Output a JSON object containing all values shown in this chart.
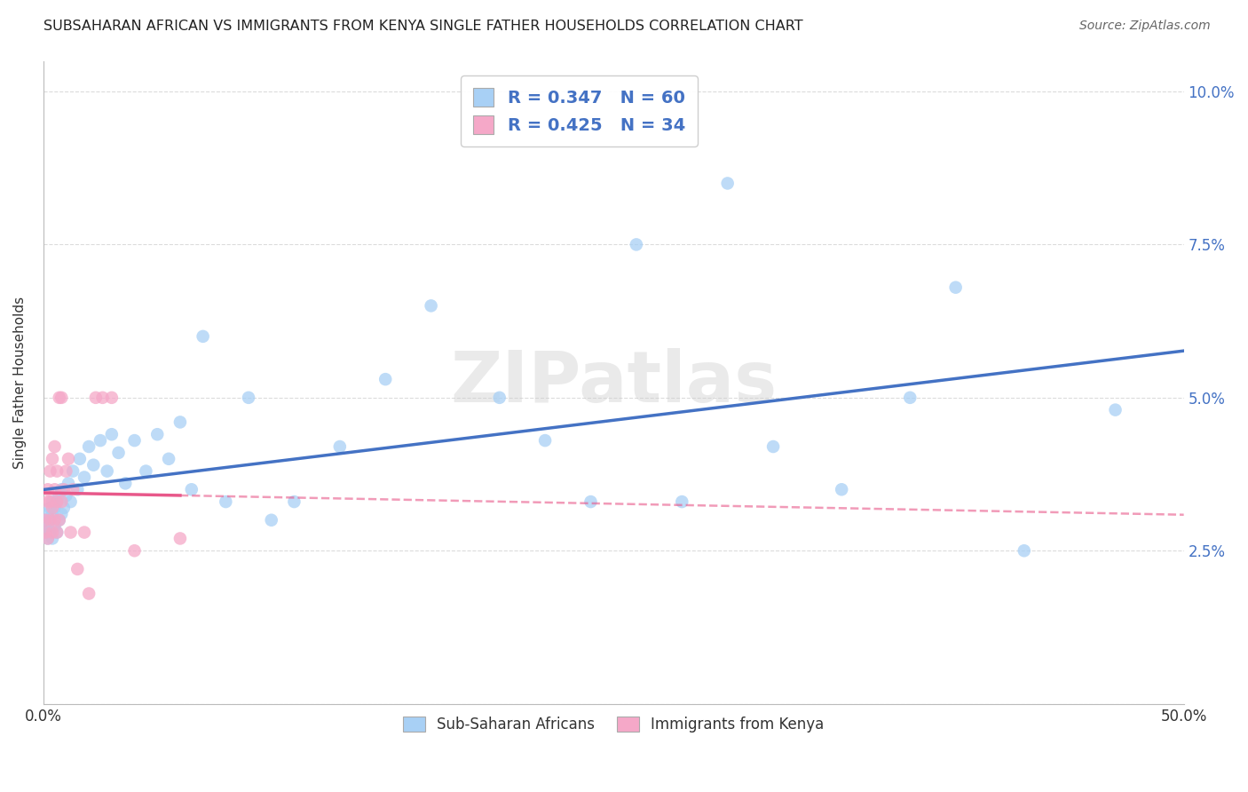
{
  "title": "SUBSAHARAN AFRICAN VS IMMIGRANTS FROM KENYA SINGLE FATHER HOUSEHOLDS CORRELATION CHART",
  "source": "Source: ZipAtlas.com",
  "ylabel": "Single Father Households",
  "xlim": [
    0.0,
    0.5
  ],
  "ylim": [
    0.0,
    0.105
  ],
  "blue_r": 0.347,
  "blue_n": 60,
  "pink_r": 0.425,
  "pink_n": 34,
  "blue_color": "#A8D0F5",
  "pink_color": "#F5A8C8",
  "blue_line_color": "#4472C4",
  "pink_line_color": "#E8588A",
  "legend_text_color": "#4472C4",
  "background_color": "#FFFFFF",
  "grid_color": "#CCCCCC",
  "watermark": "ZIPatlas",
  "blue_x": [
    0.001,
    0.001,
    0.002,
    0.002,
    0.002,
    0.003,
    0.003,
    0.003,
    0.004,
    0.004,
    0.004,
    0.005,
    0.005,
    0.006,
    0.006,
    0.007,
    0.007,
    0.008,
    0.008,
    0.009,
    0.01,
    0.011,
    0.012,
    0.013,
    0.015,
    0.016,
    0.018,
    0.02,
    0.022,
    0.025,
    0.028,
    0.03,
    0.033,
    0.036,
    0.04,
    0.045,
    0.05,
    0.055,
    0.06,
    0.065,
    0.07,
    0.08,
    0.09,
    0.1,
    0.11,
    0.13,
    0.15,
    0.17,
    0.2,
    0.22,
    0.24,
    0.26,
    0.28,
    0.3,
    0.32,
    0.35,
    0.38,
    0.4,
    0.43,
    0.47
  ],
  "blue_y": [
    0.028,
    0.03,
    0.027,
    0.029,
    0.031,
    0.028,
    0.03,
    0.032,
    0.027,
    0.031,
    0.033,
    0.029,
    0.032,
    0.028,
    0.033,
    0.03,
    0.034,
    0.031,
    0.035,
    0.032,
    0.034,
    0.036,
    0.033,
    0.038,
    0.035,
    0.04,
    0.037,
    0.042,
    0.039,
    0.043,
    0.038,
    0.044,
    0.041,
    0.036,
    0.043,
    0.038,
    0.044,
    0.04,
    0.046,
    0.035,
    0.06,
    0.033,
    0.05,
    0.03,
    0.033,
    0.042,
    0.053,
    0.065,
    0.05,
    0.043,
    0.033,
    0.075,
    0.033,
    0.085,
    0.042,
    0.035,
    0.05,
    0.068,
    0.025,
    0.048
  ],
  "pink_x": [
    0.001,
    0.001,
    0.002,
    0.002,
    0.002,
    0.003,
    0.003,
    0.003,
    0.004,
    0.004,
    0.004,
    0.005,
    0.005,
    0.005,
    0.006,
    0.006,
    0.006,
    0.007,
    0.007,
    0.008,
    0.008,
    0.009,
    0.01,
    0.011,
    0.012,
    0.013,
    0.015,
    0.018,
    0.02,
    0.023,
    0.026,
    0.03,
    0.04,
    0.06
  ],
  "pink_y": [
    0.028,
    0.03,
    0.027,
    0.033,
    0.035,
    0.03,
    0.033,
    0.038,
    0.028,
    0.032,
    0.04,
    0.03,
    0.035,
    0.042,
    0.028,
    0.033,
    0.038,
    0.03,
    0.05,
    0.033,
    0.05,
    0.035,
    0.038,
    0.04,
    0.028,
    0.035,
    0.022,
    0.028,
    0.018,
    0.05,
    0.05,
    0.05,
    0.025,
    0.027
  ]
}
